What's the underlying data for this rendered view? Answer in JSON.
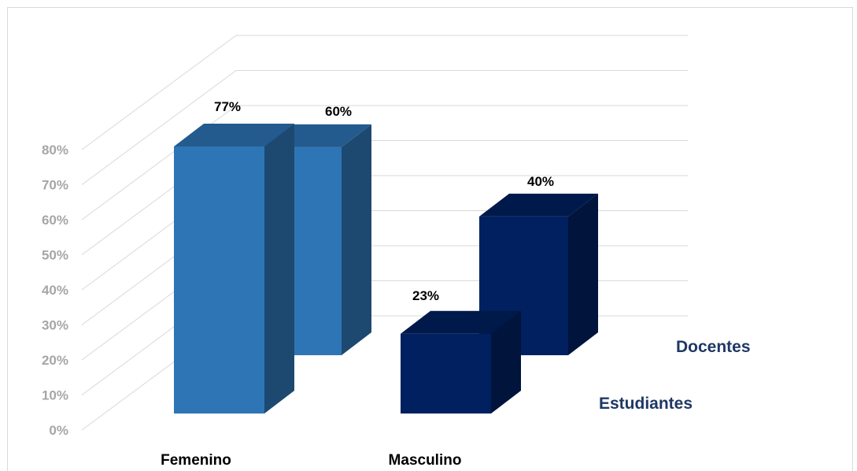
{
  "chart_data": {
    "type": "bar",
    "categories": [
      "Femenino",
      "Masculino"
    ],
    "series": [
      {
        "name": "Estudiantes",
        "values": [
          77,
          23
        ],
        "color": "#2e75b6",
        "color_masculino": "#002060"
      },
      {
        "name": "Docentes",
        "values": [
          60,
          40
        ],
        "color": "#2e75b6",
        "color_masculino": "#002060"
      }
    ],
    "value_labels": [
      "77%",
      "60%",
      "23%",
      "40%"
    ],
    "y_ticks": [
      "0%",
      "10%",
      "20%",
      "30%",
      "40%",
      "50%",
      "60%",
      "70%",
      "80%"
    ],
    "ylim": [
      0,
      80
    ],
    "grid": true,
    "three_d": true
  }
}
